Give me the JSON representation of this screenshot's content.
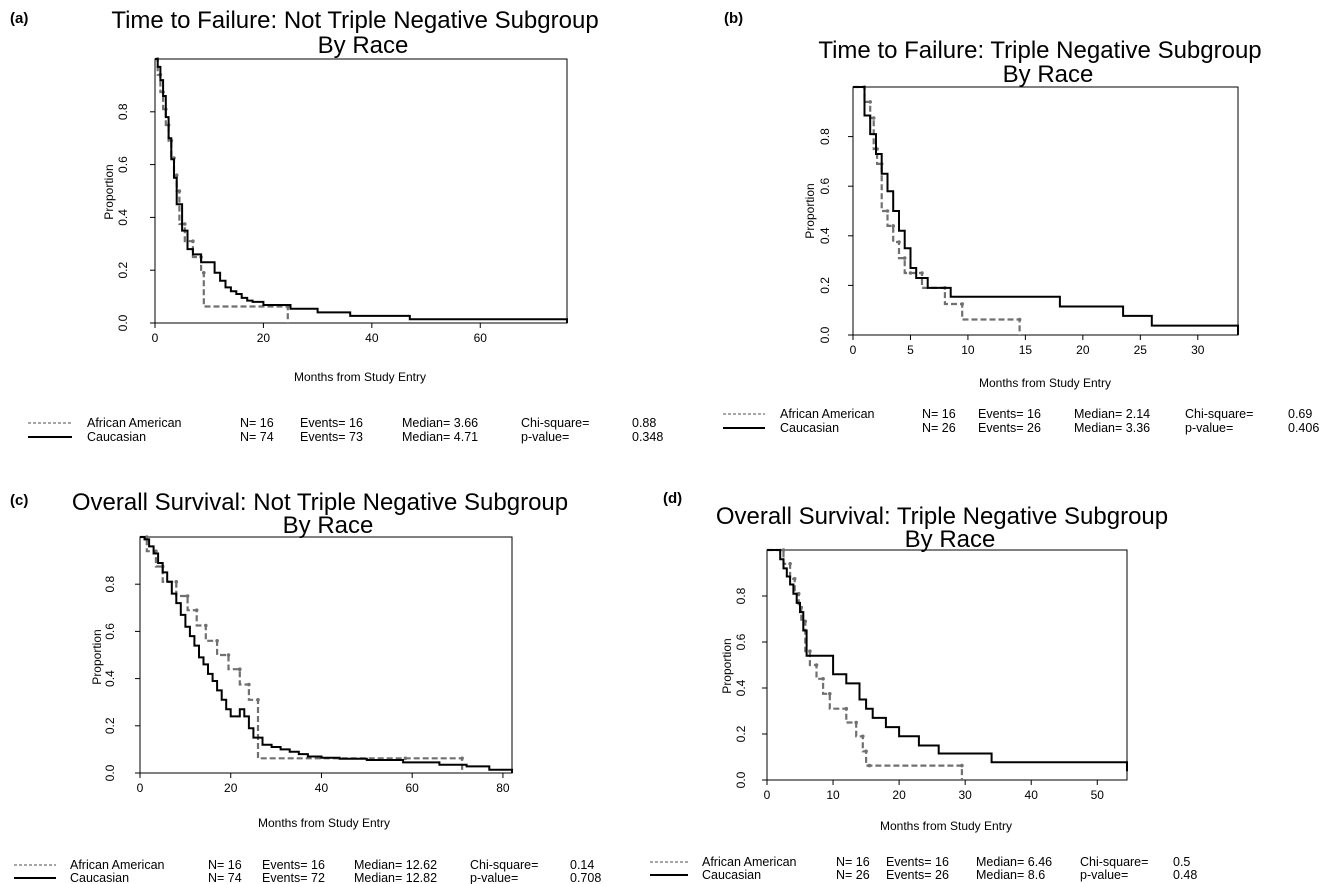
{
  "colors": {
    "african_american": "#707070",
    "caucasian": "#000000",
    "frame": "#000000"
  },
  "chart_data": [
    {
      "panel": "(a)",
      "type": "line",
      "title": [
        "Time to Failure: Not Triple Negative Subgroup",
        "By Race"
      ],
      "xlabel": "Months from Study Entry",
      "ylabel": "Proportion",
      "xlim": [
        0,
        76
      ],
      "ylim": [
        0,
        1
      ],
      "xticks": [
        "0",
        "20",
        "40",
        "60"
      ],
      "xtick_values": [
        0,
        20,
        40,
        60
      ],
      "yticks": [
        "0.0",
        "0.2",
        "0.4",
        "0.6",
        "0.8"
      ],
      "ytick_values": [
        0,
        0.2,
        0.4,
        0.6,
        0.8
      ],
      "grid": false,
      "series": [
        {
          "name": "African American",
          "style": "dashed",
          "x": [
            0,
            0.5,
            1.0,
            1.5,
            2.0,
            2.5,
            3.0,
            3.5,
            4.0,
            4.5,
            5.5,
            7.0,
            8.5,
            9.0,
            24.5
          ],
          "y": [
            1.0,
            0.94,
            0.875,
            0.81,
            0.75,
            0.69,
            0.625,
            0.56,
            0.5,
            0.375,
            0.31,
            0.25,
            0.19,
            0.0625,
            0.0
          ]
        },
        {
          "name": "Caucasian",
          "style": "solid",
          "x": [
            0,
            0.5,
            1.0,
            1.5,
            2.0,
            2.5,
            3.0,
            3.5,
            4.0,
            5.0,
            6.0,
            7.0,
            8.5,
            11.0,
            12.0,
            13.0,
            14.0,
            15.0,
            16.0,
            17.0,
            18.0,
            20.0,
            25.0,
            30.0,
            36.0,
            47.0,
            76.0
          ],
          "y": [
            1.0,
            0.97,
            0.92,
            0.86,
            0.78,
            0.7,
            0.62,
            0.55,
            0.45,
            0.35,
            0.28,
            0.26,
            0.23,
            0.19,
            0.16,
            0.135,
            0.12,
            0.11,
            0.095,
            0.085,
            0.08,
            0.068,
            0.054,
            0.04,
            0.027,
            0.014,
            0.0
          ]
        }
      ],
      "legend": [
        {
          "name": "African American",
          "n": "N= 16",
          "events": "Events= 16",
          "median": "Median= 3.66",
          "stat_label": "Chi-square=",
          "stat_value": "0.88"
        },
        {
          "name": "Caucasian",
          "n": "N= 74",
          "events": "Events= 73",
          "median": "Median= 4.71",
          "stat_label": "p-value=",
          "stat_value": "0.348"
        }
      ]
    },
    {
      "panel": "(b)",
      "type": "line",
      "title": [
        "Time to Failure: Triple Negative Subgroup",
        "By Race"
      ],
      "xlabel": "Months from Study Entry",
      "ylabel": "Proportion",
      "xlim": [
        0,
        33.5
      ],
      "ylim": [
        0,
        1
      ],
      "xticks": [
        "0",
        "5",
        "10",
        "15",
        "20",
        "25",
        "30"
      ],
      "xtick_values": [
        0,
        5,
        10,
        15,
        20,
        25,
        30
      ],
      "yticks": [
        "0.0",
        "0.2",
        "0.4",
        "0.6",
        "0.8"
      ],
      "ytick_values": [
        0,
        0.2,
        0.4,
        0.6,
        0.8
      ],
      "grid": false,
      "series": [
        {
          "name": "African American",
          "style": "dashed",
          "x": [
            0,
            1.0,
            1.5,
            1.8,
            2.1,
            2.5,
            3.0,
            3.5,
            4.0,
            4.5,
            5.0,
            6.0,
            8.0,
            9.5,
            14.5
          ],
          "y": [
            1.0,
            0.94,
            0.875,
            0.75,
            0.69,
            0.5,
            0.44,
            0.375,
            0.31,
            0.25,
            0.25,
            0.19,
            0.125,
            0.0625,
            0.0
          ]
        },
        {
          "name": "Caucasian",
          "style": "solid",
          "x": [
            0,
            1.0,
            1.5,
            2.0,
            2.5,
            3.0,
            3.5,
            4.0,
            4.5,
            5.0,
            5.5,
            6.5,
            8.5,
            18.0,
            23.5,
            26.0,
            33.5
          ],
          "y": [
            1.0,
            0.885,
            0.81,
            0.73,
            0.65,
            0.58,
            0.5,
            0.42,
            0.35,
            0.27,
            0.23,
            0.19,
            0.154,
            0.115,
            0.077,
            0.038,
            0.0
          ]
        }
      ],
      "legend": [
        {
          "name": "African American",
          "n": "N= 16",
          "events": "Events= 16",
          "median": "Median= 2.14",
          "stat_label": "Chi-square=",
          "stat_value": "0.69"
        },
        {
          "name": "Caucasian",
          "n": "N= 26",
          "events": "Events= 26",
          "median": "Median= 3.36",
          "stat_label": "p-value=",
          "stat_value": "0.406"
        }
      ]
    },
    {
      "panel": "(c)",
      "type": "line",
      "title": [
        "Overall Survival: Not Triple Negative Subgroup",
        "By Race"
      ],
      "xlabel": "Months from Study Entry",
      "ylabel": "Proportion",
      "xlim": [
        0,
        82
      ],
      "ylim": [
        0,
        1
      ],
      "xticks": [
        "0",
        "20",
        "40",
        "60",
        "80"
      ],
      "xtick_values": [
        0,
        20,
        40,
        60,
        80
      ],
      "yticks": [
        "0.0",
        "0.2",
        "0.4",
        "0.6",
        "0.8"
      ],
      "ytick_values": [
        0,
        0.2,
        0.4,
        0.6,
        0.8
      ],
      "grid": false,
      "series": [
        {
          "name": "African American",
          "style": "dashed",
          "x": [
            0,
            1.5,
            3.5,
            5.0,
            8.0,
            10.5,
            12.5,
            14.5,
            17.0,
            19.5,
            22.0,
            24.0,
            26.0,
            58.5,
            71.0
          ],
          "y": [
            1.0,
            0.94,
            0.875,
            0.81,
            0.75,
            0.69,
            0.625,
            0.56,
            0.5,
            0.44,
            0.375,
            0.31,
            0.0625,
            0.0625,
            0.0
          ]
        },
        {
          "name": "Caucasian",
          "style": "solid",
          "x": [
            0,
            1.0,
            2.0,
            3.0,
            4.0,
            5.0,
            6.0,
            7.0,
            8.0,
            9.0,
            10.0,
            11.0,
            12.0,
            13.0,
            14.0,
            15.0,
            16.0,
            17.0,
            18.0,
            19.0,
            20.0,
            22.0,
            23.0,
            24.0,
            25.0,
            27.0,
            29.0,
            31.0,
            33.0,
            35.0,
            37.0,
            40.0,
            44.0,
            50.0,
            58.0,
            66.0,
            72.0,
            77.0,
            82.0
          ],
          "y": [
            1.0,
            0.99,
            0.96,
            0.93,
            0.89,
            0.85,
            0.81,
            0.76,
            0.72,
            0.67,
            0.62,
            0.58,
            0.54,
            0.49,
            0.46,
            0.42,
            0.39,
            0.35,
            0.31,
            0.27,
            0.24,
            0.27,
            0.24,
            0.19,
            0.15,
            0.12,
            0.11,
            0.1,
            0.09,
            0.08,
            0.07,
            0.065,
            0.06,
            0.055,
            0.045,
            0.035,
            0.028,
            0.014,
            0.0
          ]
        }
      ],
      "legend": [
        {
          "name": "African American",
          "n": "N= 16",
          "events": "Events= 16",
          "median": "Median= 12.62",
          "stat_label": "Chi-square=",
          "stat_value": "0.14"
        },
        {
          "name": "Caucasian",
          "n": "N= 74",
          "events": "Events= 72",
          "median": "Median= 12.82",
          "stat_label": "p-value=",
          "stat_value": "0.708"
        }
      ]
    },
    {
      "panel": "(d)",
      "type": "line",
      "title": [
        "Overall Survival: Triple Negative Subgroup",
        "By Race"
      ],
      "xlabel": "Months from Study Entry",
      "ylabel": "Proportion",
      "xlim": [
        0,
        54.5
      ],
      "ylim": [
        0,
        1
      ],
      "xticks": [
        "0",
        "10",
        "20",
        "30",
        "40",
        "50"
      ],
      "xtick_values": [
        0,
        10,
        20,
        30,
        40,
        50
      ],
      "yticks": [
        "0.0",
        "0.2",
        "0.4",
        "0.6",
        "0.8"
      ],
      "ytick_values": [
        0,
        0.2,
        0.4,
        0.6,
        0.8
      ],
      "grid": false,
      "series": [
        {
          "name": "African American",
          "style": "dashed",
          "x": [
            0,
            2.5,
            3.5,
            4.2,
            4.8,
            5.2,
            5.8,
            6.5,
            7.5,
            8.5,
            9.5,
            12.0,
            13.5,
            14.5,
            15.0,
            15.5,
            29.5
          ],
          "y": [
            1.0,
            0.94,
            0.875,
            0.81,
            0.75,
            0.69,
            0.56,
            0.5,
            0.44,
            0.375,
            0.31,
            0.25,
            0.19,
            0.125,
            0.0625,
            0.0625,
            0.0
          ]
        },
        {
          "name": "Caucasian",
          "style": "solid",
          "x": [
            0,
            2.0,
            2.5,
            3.0,
            3.5,
            4.0,
            4.5,
            5.0,
            5.5,
            6.0,
            10.0,
            12.0,
            14.0,
            15.0,
            16.0,
            18.0,
            20.0,
            23.0,
            26.0,
            34.0,
            54.5
          ],
          "y": [
            1.0,
            0.96,
            0.92,
            0.885,
            0.85,
            0.81,
            0.77,
            0.73,
            0.65,
            0.54,
            0.46,
            0.42,
            0.35,
            0.31,
            0.27,
            0.23,
            0.19,
            0.15,
            0.115,
            0.077,
            0.038
          ]
        }
      ],
      "legend": [
        {
          "name": "African American",
          "n": "N= 16",
          "events": "Events= 16",
          "median": "Median= 6.46",
          "stat_label": "Chi-square=",
          "stat_value": "0.5"
        },
        {
          "name": "Caucasian",
          "n": "N= 26",
          "events": "Events= 26",
          "median": "Median= 8.6",
          "stat_label": "p-value=",
          "stat_value": "0.48"
        }
      ]
    }
  ]
}
